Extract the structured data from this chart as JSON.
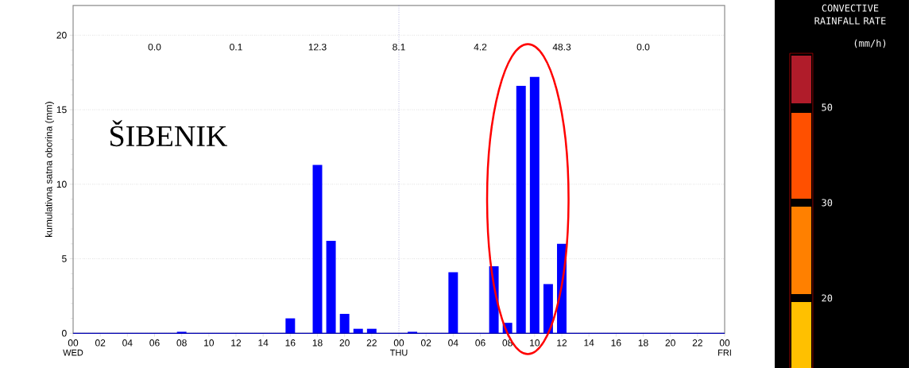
{
  "chart_data": [
    {
      "type": "bar",
      "title": "ŠIBENIK",
      "ylabel": "kumulativna satna oborina (mm)",
      "x": [
        8,
        16,
        18,
        19,
        20,
        21,
        22,
        25,
        28,
        31,
        32,
        33,
        34,
        35,
        36
      ],
      "values": [
        0.1,
        1.0,
        11.3,
        6.2,
        1.3,
        0.3,
        0.3,
        0.1,
        4.1,
        4.5,
        0.7,
        16.6,
        17.2,
        3.3,
        6.0
      ],
      "color": "#0000ff",
      "xlim": [
        0,
        48
      ],
      "ylim": [
        0,
        22
      ],
      "xticks": [
        {
          "value": 0,
          "label": "00"
        },
        {
          "value": 2,
          "label": "02"
        },
        {
          "value": 4,
          "label": "04"
        },
        {
          "value": 6,
          "label": "06"
        },
        {
          "value": 8,
          "label": "08"
        },
        {
          "value": 10,
          "label": "10"
        },
        {
          "value": 12,
          "label": "12"
        },
        {
          "value": 14,
          "label": "14"
        },
        {
          "value": 16,
          "label": "16"
        },
        {
          "value": 18,
          "label": "18"
        },
        {
          "value": 20,
          "label": "20"
        },
        {
          "value": 22,
          "label": "22"
        },
        {
          "value": 24,
          "label": "00"
        },
        {
          "value": 26,
          "label": "02"
        },
        {
          "value": 28,
          "label": "04"
        },
        {
          "value": 30,
          "label": "06"
        },
        {
          "value": 32,
          "label": "08"
        },
        {
          "value": 34,
          "label": "10"
        },
        {
          "value": 36,
          "label": "12"
        },
        {
          "value": 38,
          "label": "14"
        },
        {
          "value": 40,
          "label": "16"
        },
        {
          "value": 42,
          "label": "18"
        },
        {
          "value": 44,
          "label": "20"
        },
        {
          "value": 46,
          "label": "22"
        },
        {
          "value": 48,
          "label": "00"
        }
      ],
      "yticks": [
        0,
        5,
        10,
        15,
        20
      ],
      "grid": "y",
      "ref_lines": [
        {
          "axis": "x",
          "value": 24,
          "color": "#9090d0",
          "line_style": "dotted"
        }
      ],
      "annotations": [
        "WED",
        "THU",
        "FRI",
        "0.0",
        "0.1",
        "12.3",
        "8.1",
        "4.2",
        "48.3",
        "0.0"
      ]
    },
    {
      "type": "other",
      "title": "CONVECTIVE RAINFALL RATE",
      "subtitle": "(mm/h)",
      "annotations": [
        "50",
        "30",
        "20"
      ]
    }
  ]
}
